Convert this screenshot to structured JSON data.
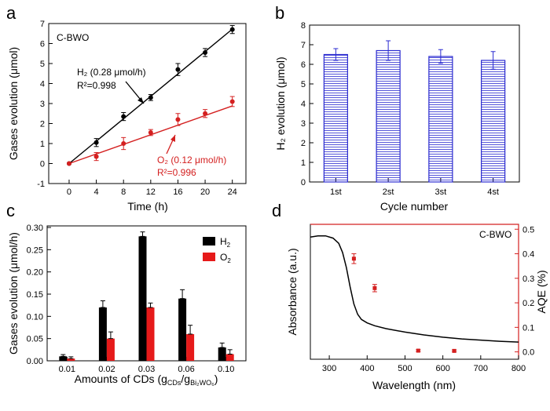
{
  "chart_data": [
    {
      "panel": "a",
      "type": "line",
      "sample_label": "C-BWO",
      "xlabel": "Time (h)",
      "ylabel": "Gases evolution (μmol)",
      "xlim": [
        -3,
        26
      ],
      "ylim": [
        -1,
        7
      ],
      "xticks": [
        0,
        4,
        8,
        12,
        16,
        20,
        24
      ],
      "yticks": [
        -1,
        0,
        1,
        2,
        3,
        4,
        5,
        6,
        7
      ],
      "series": [
        {
          "name": "H2",
          "color": "#000000",
          "x": [
            0,
            4,
            8,
            12,
            16,
            20,
            24
          ],
          "y": [
            0,
            1.05,
            2.35,
            3.3,
            4.7,
            5.55,
            6.7
          ],
          "err": [
            0,
            0.2,
            0.2,
            0.15,
            0.3,
            0.2,
            0.2
          ],
          "fit": [
            [
              0,
              0
            ],
            [
              24,
              6.72
            ]
          ],
          "annotation": {
            "line1": "H₂ (0.28 μmol/h)",
            "line2": "R²=0.998"
          }
        },
        {
          "name": "O2",
          "color": "#d42020",
          "x": [
            0,
            4,
            8,
            12,
            16,
            20,
            24
          ],
          "y": [
            0,
            0.35,
            1.0,
            1.55,
            2.2,
            2.5,
            3.1
          ],
          "err": [
            0,
            0.2,
            0.3,
            0.15,
            0.3,
            0.2,
            0.25
          ],
          "fit": [
            [
              0,
              0
            ],
            [
              24,
              2.88
            ]
          ],
          "annotation": {
            "line1": "O₂ (0.12 μmol/h)",
            "line2": "R²=0.996"
          }
        }
      ]
    },
    {
      "panel": "b",
      "type": "bar",
      "xlabel": "Cycle number",
      "ylabel": "H₂ evolution (μmol)",
      "categories": [
        "1st",
        "2st",
        "3st",
        "4st"
      ],
      "values": [
        6.5,
        6.7,
        6.4,
        6.2
      ],
      "err": [
        0.3,
        0.5,
        0.35,
        0.45
      ],
      "ylim": [
        0,
        8
      ],
      "yticks": [
        0,
        1,
        2,
        3,
        4,
        5,
        6,
        7,
        8
      ],
      "bar_color": "#2a2ad0"
    },
    {
      "panel": "c",
      "type": "bar",
      "xlabel": "Amounts of CDs (g",
      "xlabel_sub1": "CDs",
      "xlabel_mid": "/g",
      "xlabel_sub2": "Bi₂WO₆",
      "xlabel_end": ")",
      "ylabel": "Gases evolution (μmol/h)",
      "categories": [
        "0.01",
        "0.02",
        "0.03",
        "0.06",
        "0.10"
      ],
      "ylim": [
        0,
        0.3
      ],
      "yticks": [
        "0.00",
        "0.05",
        "0.10",
        "0.15",
        "0.20",
        "0.25",
        "0.30"
      ],
      "series": [
        {
          "name": "H",
          "sub": "2",
          "color": "#000000",
          "values": [
            0.01,
            0.12,
            0.28,
            0.14,
            0.03
          ],
          "err": [
            0.004,
            0.015,
            0.01,
            0.02,
            0.01
          ]
        },
        {
          "name": "O",
          "sub": "2",
          "color": "#e61a1a",
          "values": [
            0.005,
            0.05,
            0.12,
            0.06,
            0.015
          ],
          "err": [
            0.004,
            0.015,
            0.01,
            0.02,
            0.01
          ]
        }
      ]
    },
    {
      "panel": "d",
      "type": "line",
      "sample_label": "C-BWO",
      "xlabel": "Wavelength (nm)",
      "ylabel_left": "Absorbance (a.u.)",
      "ylabel_right": "AQE (%)",
      "xlim": [
        250,
        800
      ],
      "xticks": [
        300,
        400,
        500,
        600,
        700,
        800
      ],
      "y2lim": [
        -0.03,
        0.52
      ],
      "y2ticks": [
        "0.0",
        "0.1",
        "0.2",
        "0.3",
        "0.4",
        "0.5"
      ],
      "absorbance_curve": {
        "x": [
          250,
          270,
          290,
          310,
          325,
          335,
          345,
          355,
          365,
          375,
          385,
          400,
          420,
          450,
          500,
          550,
          600,
          650,
          700,
          750,
          800
        ],
        "y": [
          0.985,
          0.995,
          0.995,
          0.975,
          0.93,
          0.85,
          0.72,
          0.55,
          0.4,
          0.31,
          0.265,
          0.235,
          0.21,
          0.185,
          0.155,
          0.13,
          0.11,
          0.095,
          0.085,
          0.075,
          0.068
        ]
      },
      "aqe": {
        "x": [
          365,
          420,
          535,
          630
        ],
        "y": [
          0.38,
          0.26,
          0.005,
          0.004
        ],
        "err": [
          0.02,
          0.015,
          0.004,
          0.004
        ],
        "color": "#d42020"
      }
    }
  ],
  "panel_labels": [
    "a",
    "b",
    "c",
    "d"
  ],
  "colors": {
    "black": "#000000",
    "red": "#d42020",
    "blue": "#2a2ad0"
  }
}
